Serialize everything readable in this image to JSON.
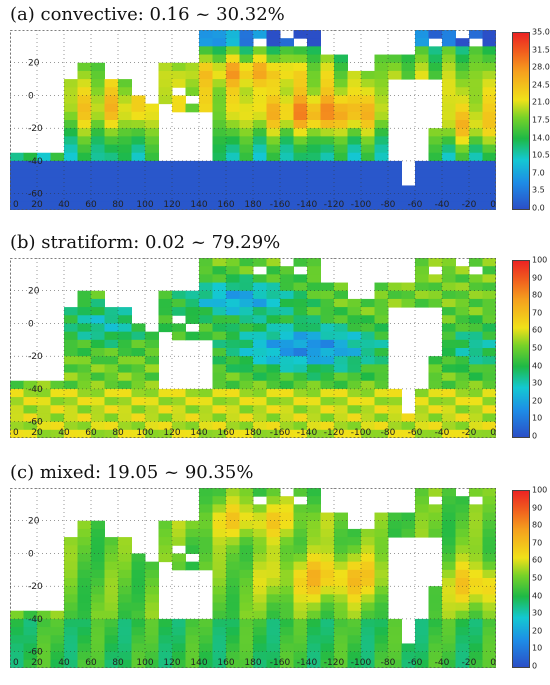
{
  "panels": [
    {
      "id": "convective",
      "title": "(a) convective:  0.16 ~ 30.32%",
      "colorbar_ticks": [
        "35.0",
        "31.5",
        "28.0",
        "24.5",
        "21.0",
        "17.5",
        "14.0",
        "10.5",
        "7.0",
        "3.5",
        "0.0"
      ],
      "vmin": 0,
      "vmax": 35
    },
    {
      "id": "stratiform",
      "title": "(b) stratiform:  0.02 ~ 79.29%",
      "colorbar_ticks": [
        "100",
        "90",
        "80",
        "70",
        "60",
        "50",
        "40",
        "30",
        "20",
        "10",
        "0"
      ],
      "vmin": 0,
      "vmax": 100
    },
    {
      "id": "mixed",
      "title": "(c) mixed:  19.05 ~ 90.35%",
      "colorbar_ticks": [
        "100",
        "90",
        "80",
        "70",
        "60",
        "50",
        "40",
        "30",
        "20",
        "10",
        "0"
      ],
      "vmin": 0,
      "vmax": 100
    }
  ],
  "map": {
    "lon_ticks": [
      "0",
      "20",
      "40",
      "60",
      "80",
      "100",
      "120",
      "140",
      "160",
      "180",
      "-160",
      "-140",
      "-120",
      "-100",
      "-80",
      "-60",
      "-40",
      "-20",
      "0"
    ],
    "lat_ticks": [
      "20",
      "0",
      "-20",
      "-40",
      "-60"
    ]
  },
  "colors": {
    "ocean_low": "#2b4fc7",
    "ocean_mid": "#1fb84a",
    "ocean_high": "#f2e21a",
    "peak": "#f04020",
    "land": "#ffffff",
    "coast": "#111111"
  }
}
